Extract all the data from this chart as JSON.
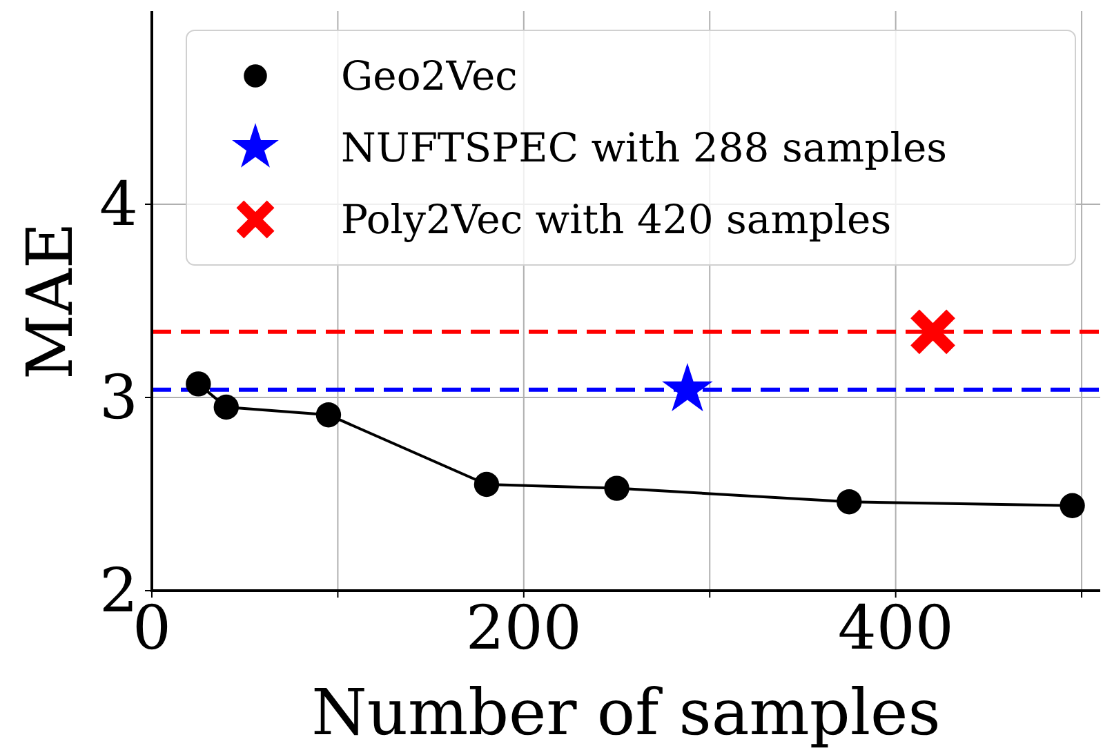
{
  "chart_data": {
    "type": "line",
    "xlabel": "Number of samples",
    "ylabel": "MAE",
    "xlim": [
      0,
      510
    ],
    "ylim": [
      2,
      5
    ],
    "xticks": [
      0,
      {
        "value": 100,
        "label": null
      },
      200,
      {
        "value": 300,
        "label": null
      },
      400,
      {
        "value": 500,
        "label": null
      }
    ],
    "yticks": [
      2,
      3,
      4
    ],
    "grid": true,
    "legend": "top",
    "series": [
      {
        "name": "Geo2Vec",
        "color": "#000000",
        "marker": "circle",
        "x": [
          25,
          40,
          95,
          180,
          250,
          375,
          495
        ],
        "values": [
          3.07,
          2.95,
          2.91,
          2.55,
          2.53,
          2.46,
          2.44
        ]
      },
      {
        "name": "NUFTSPEC with 288 samples",
        "type": "scatter",
        "color": "#0000ff",
        "marker": "star",
        "x": [
          288
        ],
        "values": [
          3.04
        ]
      },
      {
        "name": "Poly2Vec with 420 samples",
        "type": "scatter",
        "color": "#ff0000",
        "marker": "cross",
        "x": [
          420
        ],
        "values": [
          3.34
        ]
      }
    ],
    "ref_lines": [
      {
        "axis": "y",
        "value": 3.04,
        "color": "#0000ff",
        "line_style": "dashed"
      },
      {
        "axis": "y",
        "value": 3.34,
        "color": "#ff0000",
        "line_style": "dashed"
      }
    ]
  }
}
